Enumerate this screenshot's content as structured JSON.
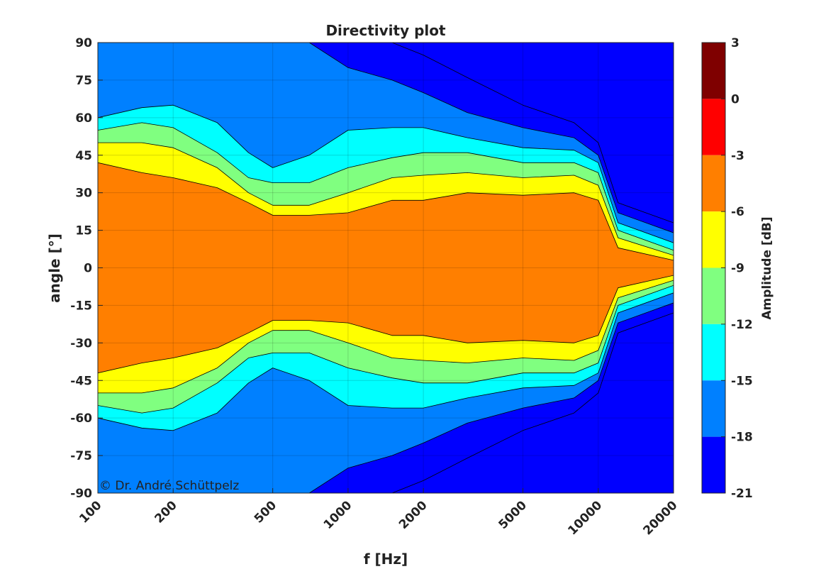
{
  "chart_data": {
    "type": "heatmap",
    "title": "Directivity plot",
    "xlabel": "f [Hz]",
    "ylabel": "angle [°]",
    "x_scale": "log",
    "xlim": [
      100,
      20000
    ],
    "ylim": [
      -90,
      90
    ],
    "x_ticks": [
      100,
      200,
      500,
      1000,
      2000,
      5000,
      10000,
      20000
    ],
    "x_tick_labels": [
      "100",
      "200",
      "500",
      "1000",
      "2000",
      "5000",
      "10000",
      "20000"
    ],
    "y_ticks": [
      90,
      75,
      60,
      45,
      30,
      15,
      0,
      -15,
      -30,
      -45,
      -60,
      -75,
      -90
    ],
    "y_tick_labels": [
      "90",
      "75",
      "60",
      "45",
      "30",
      "15",
      "0",
      "-15",
      "-30",
      "-45",
      "-60",
      "-75",
      "-90"
    ],
    "grid": true,
    "colorbar": {
      "label": "Amplitude [dB]",
      "levels": [
        3,
        0,
        -3,
        -6,
        -9,
        -12,
        -15,
        -18,
        -21
      ],
      "level_labels": [
        "3",
        "0",
        "-3",
        "-6",
        "-9",
        "-12",
        "-15",
        "-18",
        "-21"
      ],
      "colors": [
        "#7f0000",
        "#ff0000",
        "#ff7f00",
        "#ffff00",
        "#80ff80",
        "#00ffff",
        "#0080ff",
        "#0000ff"
      ],
      "placement": "right"
    },
    "contour_boundaries_db": [
      {
        "level": -3,
        "f": [
          100,
          150,
          200,
          300,
          400,
          500,
          700,
          1000,
          1500,
          2000,
          3000,
          5000,
          8000,
          10000,
          12000,
          20000
        ],
        "angle": [
          42,
          38,
          36,
          32,
          26,
          21,
          21,
          22,
          27,
          27,
          30,
          29,
          30,
          27,
          8,
          3
        ]
      },
      {
        "level": -6,
        "f": [
          100,
          150,
          200,
          300,
          400,
          500,
          700,
          1000,
          1500,
          2000,
          3000,
          5000,
          8000,
          10000,
          12000,
          20000
        ],
        "angle": [
          50,
          50,
          48,
          40,
          30,
          25,
          25,
          30,
          36,
          37,
          38,
          36,
          37,
          33,
          12,
          5
        ]
      },
      {
        "level": -9,
        "f": [
          100,
          150,
          200,
          300,
          400,
          500,
          700,
          1000,
          1500,
          2000,
          3000,
          5000,
          8000,
          10000,
          12000,
          20000
        ],
        "angle": [
          55,
          58,
          56,
          46,
          36,
          34,
          34,
          40,
          44,
          46,
          46,
          42,
          42,
          38,
          15,
          7
        ]
      },
      {
        "level": -12,
        "f": [
          100,
          150,
          200,
          300,
          400,
          500,
          700,
          1000,
          1500,
          2000,
          3000,
          5000,
          8000,
          10000,
          12000,
          20000
        ],
        "angle": [
          60,
          64,
          65,
          58,
          46,
          40,
          45,
          55,
          56,
          56,
          52,
          48,
          47,
          42,
          18,
          10
        ]
      },
      {
        "level": -15,
        "f": [
          100,
          150,
          200,
          300,
          400,
          500,
          700,
          1000,
          1500,
          2000,
          3000,
          5000,
          8000,
          10000,
          12000,
          20000
        ],
        "angle": [
          90,
          90,
          90,
          90,
          90,
          90,
          90,
          80,
          75,
          70,
          62,
          56,
          52,
          45,
          22,
          14
        ]
      },
      {
        "level": -18,
        "f": [
          100,
          150,
          200,
          300,
          400,
          500,
          700,
          1000,
          1500,
          2000,
          3000,
          5000,
          8000,
          10000,
          12000,
          20000
        ],
        "angle": [
          90,
          90,
          90,
          90,
          90,
          90,
          90,
          90,
          90,
          85,
          76,
          65,
          58,
          50,
          26,
          18
        ]
      }
    ],
    "symmetric_about_zero": true
  },
  "watermark": "© Dr. André Schüttpelz"
}
